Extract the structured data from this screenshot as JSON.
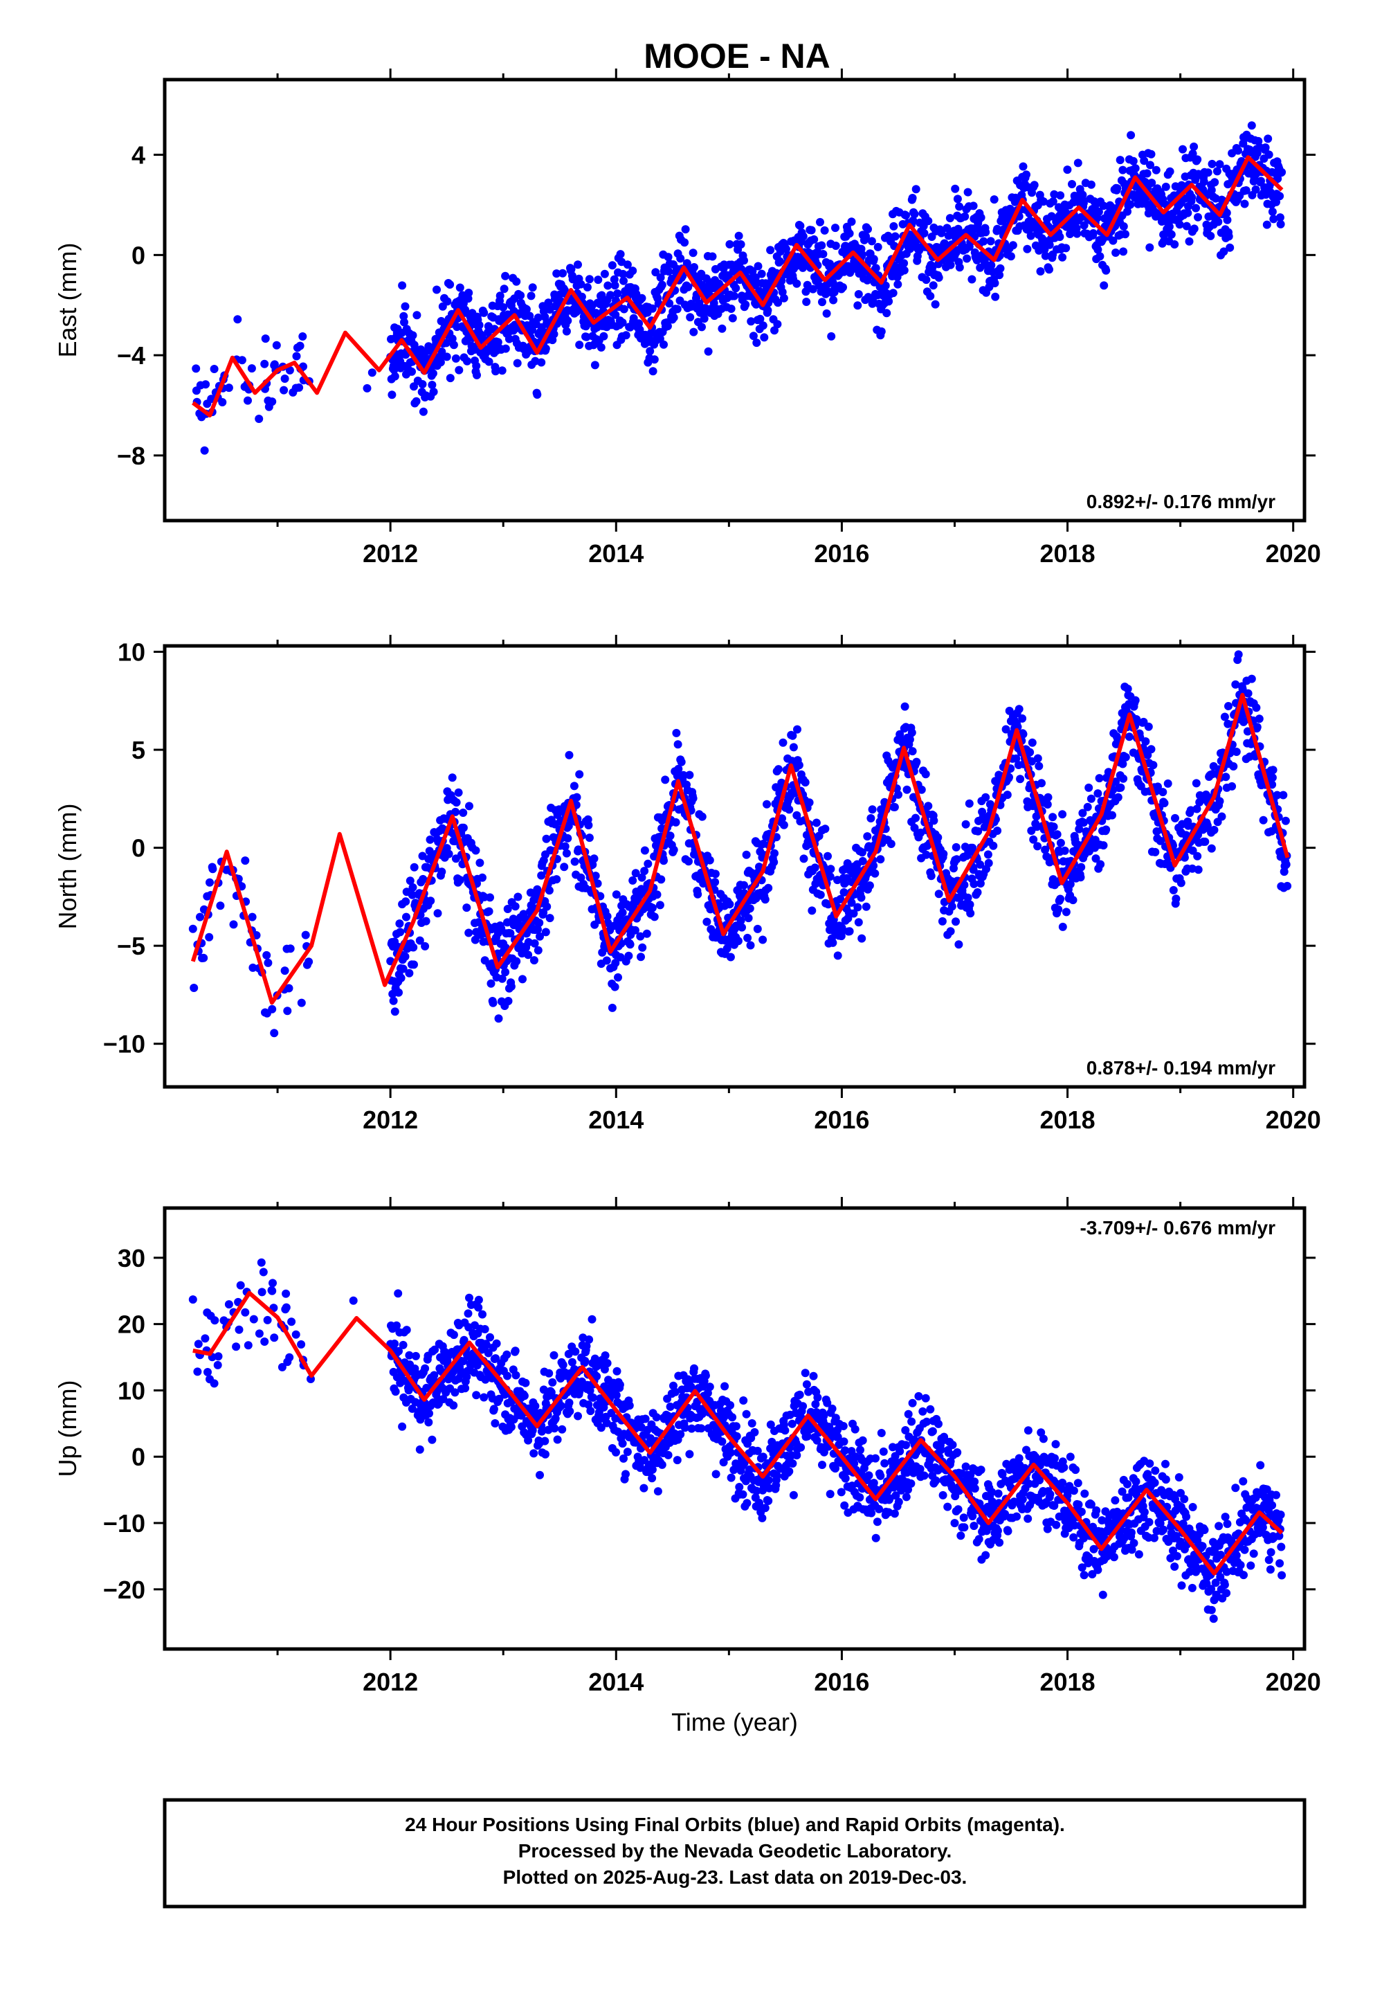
{
  "title": "MOOE - NA",
  "footer": {
    "lines": [
      "24 Hour Positions Using Final Orbits (blue) and Rapid Orbits (magenta).",
      "Processed by the Nevada Geodetic Laboratory.",
      "Plotted on 2025-Aug-23. Last data on 2019-Dec-03."
    ]
  },
  "colors": {
    "data_points": "#0000ff",
    "fit_line": "#ff0000",
    "axes": "#000000"
  },
  "chart_data": [
    {
      "type": "scatter",
      "ylabel": "East (mm)",
      "xlabel": "",
      "xlim": [
        2010.0,
        2020.1
      ],
      "ylim": [
        -10.6,
        7.0
      ],
      "xticks": [
        2012,
        2014,
        2016,
        2018,
        2020
      ],
      "yticks": [
        -8,
        -4,
        0,
        4
      ],
      "rate": "0.892+/- 0.176 mm/yr",
      "rate_position": "bottom-right",
      "fit": {
        "x": [
          2010.25,
          2010.4,
          2010.6,
          2010.8,
          2011.0,
          2011.15,
          2011.35,
          2011.6,
          2011.9,
          2012.1,
          2012.3,
          2012.6,
          2012.8,
          2013.1,
          2013.3,
          2013.6,
          2013.8,
          2014.1,
          2014.3,
          2014.6,
          2014.8,
          2015.1,
          2015.3,
          2015.6,
          2015.85,
          2016.1,
          2016.35,
          2016.6,
          2016.85,
          2017.1,
          2017.35,
          2017.6,
          2017.85,
          2018.1,
          2018.35,
          2018.6,
          2018.85,
          2019.1,
          2019.35,
          2019.6,
          2019.9
        ],
        "y": [
          -5.9,
          -6.4,
          -4.1,
          -5.5,
          -4.6,
          -4.3,
          -5.5,
          -3.1,
          -4.6,
          -3.4,
          -4.7,
          -2.2,
          -3.7,
          -2.4,
          -3.9,
          -1.4,
          -2.7,
          -1.7,
          -2.9,
          -0.5,
          -1.9,
          -0.7,
          -2.0,
          0.4,
          -1.0,
          0.1,
          -1.1,
          1.2,
          -0.2,
          0.8,
          -0.2,
          2.2,
          0.8,
          1.9,
          0.8,
          3.1,
          1.7,
          2.8,
          1.6,
          3.9,
          2.6
        ]
      }
    },
    {
      "type": "scatter",
      "ylabel": "North (mm)",
      "xlabel": "",
      "xlim": [
        2010.0,
        2020.1
      ],
      "ylim": [
        -12.2,
        10.3
      ],
      "xticks": [
        2012,
        2014,
        2016,
        2018,
        2020
      ],
      "yticks": [
        -10,
        -5,
        0,
        5,
        10
      ],
      "rate": "0.878+/- 0.194 mm/yr",
      "rate_position": "bottom-right",
      "fit": {
        "x": [
          2010.25,
          2010.55,
          2010.95,
          2011.3,
          2011.55,
          2011.95,
          2012.2,
          2012.55,
          2012.95,
          2013.3,
          2013.6,
          2013.95,
          2014.3,
          2014.55,
          2014.95,
          2015.3,
          2015.55,
          2015.95,
          2016.3,
          2016.55,
          2016.95,
          2017.3,
          2017.55,
          2017.95,
          2018.3,
          2018.55,
          2018.95,
          2019.3,
          2019.55,
          2019.95
        ],
        "y": [
          -5.8,
          -0.2,
          -7.9,
          -5.0,
          0.7,
          -7.0,
          -3.8,
          1.6,
          -6.1,
          -3.2,
          2.4,
          -5.3,
          -2.2,
          3.4,
          -4.4,
          -1.2,
          4.2,
          -3.5,
          -0.2,
          5.1,
          -2.7,
          0.8,
          6.0,
          -1.8,
          1.7,
          6.8,
          -0.9,
          2.6,
          7.8,
          -0.5
        ]
      }
    },
    {
      "type": "scatter",
      "ylabel": "Up (mm)",
      "xlabel": "Time (year)",
      "xlim": [
        2010.0,
        2020.1
      ],
      "ylim": [
        -29.0,
        37.5
      ],
      "xticks": [
        2012,
        2014,
        2016,
        2018,
        2020
      ],
      "yticks": [
        -20,
        -10,
        0,
        10,
        20,
        30
      ],
      "rate": "-3.709+/- 0.676 mm/yr",
      "rate_position": "top-right",
      "fit": {
        "x": [
          2010.25,
          2010.4,
          2010.75,
          2011.0,
          2011.3,
          2011.7,
          2012.0,
          2012.3,
          2012.7,
          2013.0,
          2013.3,
          2013.7,
          2014.0,
          2014.3,
          2014.7,
          2015.0,
          2015.3,
          2015.7,
          2016.0,
          2016.3,
          2016.7,
          2017.0,
          2017.3,
          2017.7,
          2018.0,
          2018.3,
          2018.7,
          2019.0,
          2019.3,
          2019.7,
          2019.9
        ],
        "y": [
          16.0,
          15.5,
          24.7,
          21.0,
          12.2,
          20.9,
          16.0,
          8.6,
          17.2,
          11.0,
          4.6,
          13.5,
          7.0,
          0.6,
          9.9,
          3.0,
          -3.0,
          6.2,
          0.0,
          -6.4,
          2.5,
          -3.0,
          -10.0,
          -1.2,
          -7.0,
          -13.9,
          -5.0,
          -11.0,
          -17.6,
          -8.4,
          -11.5
        ]
      }
    }
  ]
}
